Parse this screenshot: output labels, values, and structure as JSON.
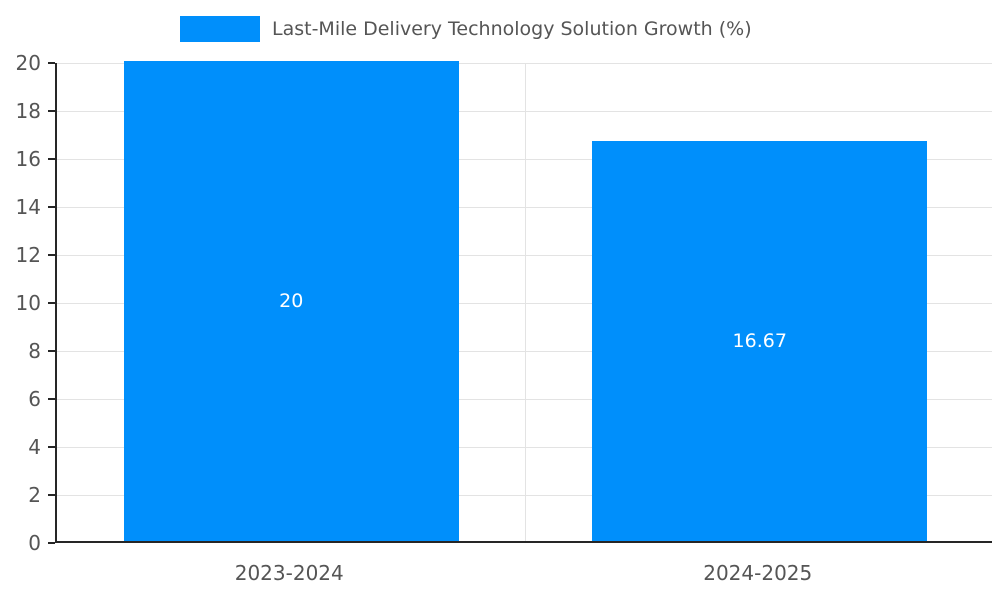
{
  "legend": {
    "label": "Last-Mile Delivery Technology Solution Growth (%)",
    "swatch_color": "#008ffb"
  },
  "chart_data": {
    "type": "bar",
    "title": "Last-Mile Delivery Technology Solution Growth (%)",
    "categories": [
      "2023-2024",
      "2024-2025"
    ],
    "values": [
      20,
      16.67
    ],
    "bar_labels": [
      "20",
      "16.67"
    ],
    "xlabel": "",
    "ylabel": "",
    "ylim": [
      0,
      20
    ],
    "yticks": [
      0,
      2,
      4,
      6,
      8,
      10,
      12,
      14,
      16,
      18,
      20
    ],
    "grid": true,
    "legend_position": "top-center",
    "bar_color": "#008ffb",
    "bar_label_color": "#ffffff"
  }
}
